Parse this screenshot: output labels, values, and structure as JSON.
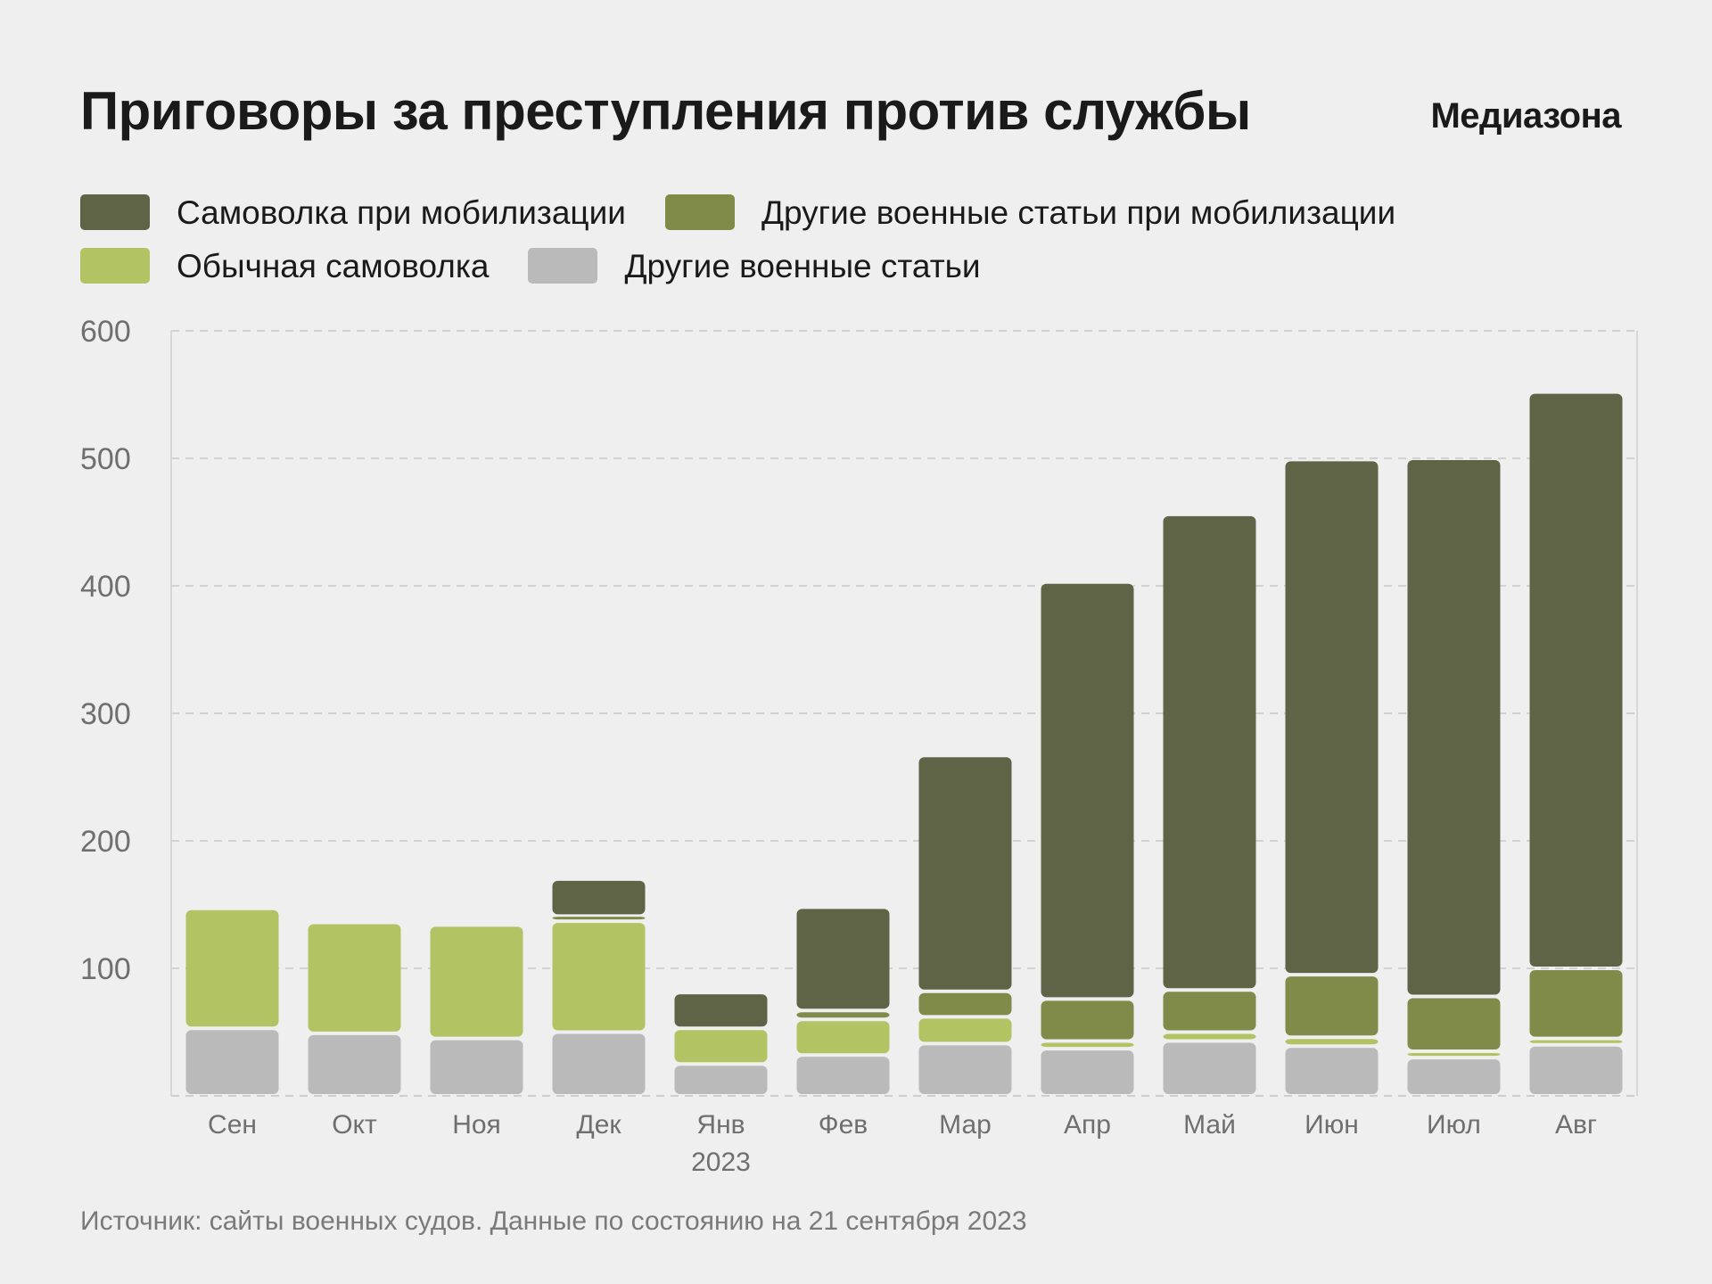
{
  "header": {
    "title": "Приговоры за преступления против службы",
    "logo": "Медиазона"
  },
  "source": "Источник: сайты военных судов. Данные по состоянию на 21 сентября 2023",
  "chart_data": {
    "type": "bar",
    "stacked": true,
    "title": "Приговоры за преступления против службы",
    "categories": [
      "Сен",
      "Окт",
      "Ноя",
      "Дек",
      "Янв",
      "Фев",
      "Мар",
      "Апр",
      "Май",
      "Июн",
      "Июл",
      "Авг"
    ],
    "category_sublabels": [
      "",
      "",
      "",
      "",
      "2023",
      "",
      "",
      "",
      "",
      "",
      "",
      ""
    ],
    "series": [
      {
        "name": "Другие военные статьи",
        "color": "#bababa",
        "values": [
          53,
          49,
          45,
          50,
          25,
          32,
          41,
          37,
          43,
          39,
          30,
          40
        ]
      },
      {
        "name": "Обычная самоволка",
        "color": "#b2c363",
        "values": [
          94,
          87,
          89,
          87,
          28,
          28,
          21,
          6,
          7,
          7,
          5,
          5
        ]
      },
      {
        "name": "Другие военные статьи при мобилизации",
        "color": "#818b49",
        "values": [
          0,
          0,
          0,
          4,
          0,
          7,
          20,
          33,
          33,
          49,
          43,
          55
        ]
      },
      {
        "name": "Самоволка при мобилизации",
        "color": "#5f6447",
        "values": [
          0,
          0,
          0,
          29,
          28,
          81,
          185,
          327,
          373,
          404,
          422,
          452
        ]
      }
    ],
    "legend_order": [
      3,
      2,
      1,
      0
    ],
    "ylim": [
      0,
      600
    ],
    "yticks": [
      100,
      200,
      300,
      400,
      500,
      600
    ],
    "xlabel": "",
    "ylabel": "",
    "grid": true,
    "legend_position": "top-left"
  }
}
